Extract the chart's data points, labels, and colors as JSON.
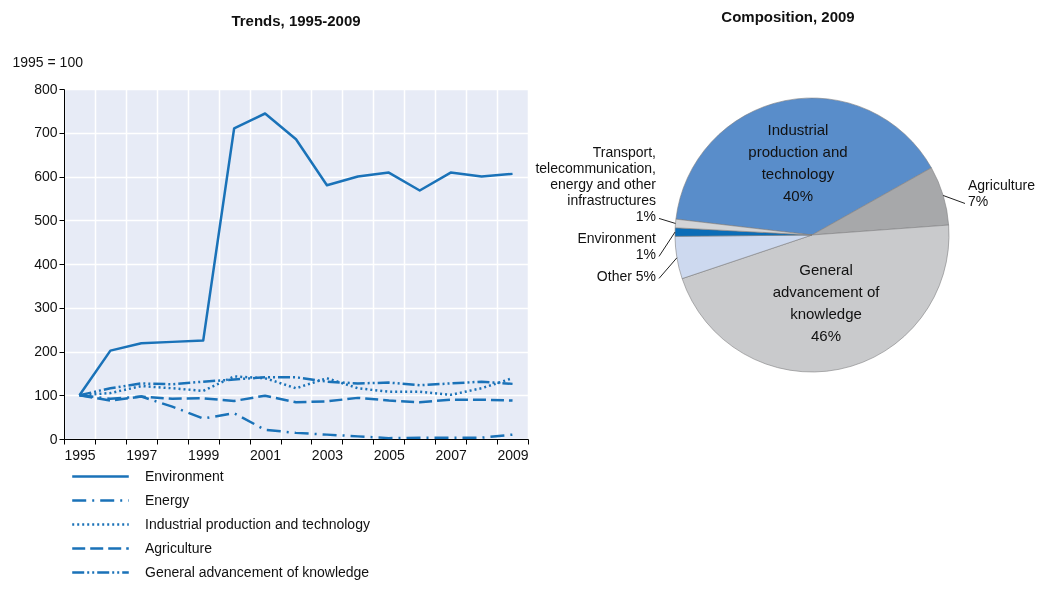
{
  "chart_data": [
    {
      "type": "line",
      "title": "Trends, 1995-2009",
      "ylabel": "1995 = 100",
      "categories": [
        "1995",
        null,
        "1997",
        null,
        "1999",
        null,
        "2001",
        null,
        "2003",
        null,
        "2005",
        null,
        "2007",
        null,
        "2009"
      ],
      "series": [
        {
          "name": "Environment",
          "color": "#1a72b8",
          "line_style": "solid",
          "values": [
            100,
            202,
            219,
            222,
            225,
            710,
            744,
            685,
            580,
            600,
            609,
            568,
            609,
            600,
            606
          ]
        },
        {
          "name": "Energy",
          "color": "#1a72b8",
          "line_style": "dashdot",
          "values": [
            100,
            92,
            97,
            74,
            47,
            59,
            21,
            14,
            10,
            6,
            2,
            3,
            3,
            3,
            10
          ]
        },
        {
          "name": "Industrial production and technology",
          "color": "#1a72b8",
          "line_style": "dotted",
          "values": [
            100,
            105,
            121,
            116,
            110,
            143,
            139,
            116,
            139,
            116,
            108,
            108,
            101,
            116,
            139
          ]
        },
        {
          "name": "Agriculture",
          "color": "#1a72b8",
          "line_style": "dashed",
          "values": [
            100,
            88,
            97,
            92,
            93,
            87,
            99,
            84,
            86,
            94,
            88,
            84,
            90,
            90,
            88
          ]
        },
        {
          "name": "General advancement of knowledge",
          "color": "#1a72b8",
          "line_style": "dashdotdot",
          "values": [
            100,
            116,
            127,
            125,
            131,
            136,
            141,
            141,
            131,
            127,
            129,
            123,
            127,
            131,
            126
          ]
        }
      ],
      "ylim": [
        0,
        800
      ],
      "yticks": [
        0,
        100,
        200,
        300,
        400,
        500,
        600,
        700,
        800
      ],
      "grid": true,
      "legend": "bottom",
      "marker": "none"
    },
    {
      "type": "pie",
      "title": "Composition, 2009",
      "categories": [
        "Industrial production and technology",
        "Agriculture",
        "General advancement of knowledge",
        "Other",
        "Environment",
        "Transport, telecommunication, energy and other infrastructures"
      ],
      "values": [
        40,
        7,
        46,
        5,
        1,
        1
      ],
      "value_labels": [
        "40%",
        "7%",
        "46%",
        "5%",
        "1%",
        "1%"
      ],
      "colors": [
        "#598dca",
        "#a7a8aa",
        "#c9cacc",
        "#cdd9ef",
        "#0b6db7",
        "#d3d4d6"
      ]
    }
  ]
}
